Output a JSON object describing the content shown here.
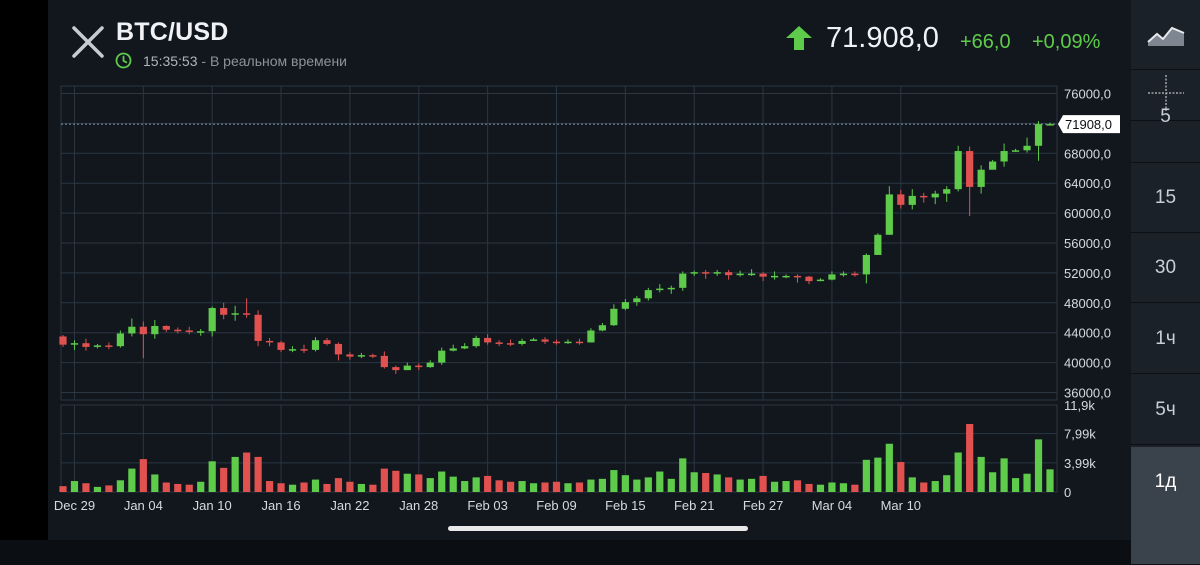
{
  "header": {
    "symbol": "BTC/USD",
    "time": "15:35:53",
    "status_text": " - В реальном времени",
    "price": "71.908,0",
    "change": "+66,0",
    "change_pct": "+0,09%"
  },
  "colors": {
    "up": "#5ecb4a",
    "down": "#e0514f",
    "background": "#12171e",
    "grid": "#2a3642"
  },
  "icons": {
    "close": "close-icon",
    "clock": "clock-icon",
    "trend": "arrow-up-icon",
    "chart_type": "line-chart-icon",
    "crosshair": "crosshair-icon"
  },
  "timeframes": [
    {
      "label": "5",
      "active": false
    },
    {
      "label": "15",
      "active": false
    },
    {
      "label": "30",
      "active": false
    },
    {
      "label": "1ч",
      "active": false
    },
    {
      "label": "5ч",
      "active": false
    },
    {
      "label": "1д",
      "active": true
    }
  ],
  "chart_data": {
    "type": "candlestick",
    "x_ticks": [
      "Dec 29",
      "Jan 04",
      "Jan 10",
      "Jan 16",
      "Jan 22",
      "Jan 28",
      "Feb 03",
      "Feb 09",
      "Feb 15",
      "Feb 21",
      "Feb 27",
      "Mar 04",
      "Mar 10"
    ],
    "price_ticks": [
      "76000,0",
      "72000,0",
      "68000,0",
      "64000,0",
      "60000,0",
      "56000,0",
      "52000,0",
      "48000,0",
      "44000,0",
      "40000,0",
      "36000,0"
    ],
    "price_tick_values": [
      76000,
      72000,
      68000,
      64000,
      60000,
      56000,
      52000,
      48000,
      44000,
      40000,
      36000
    ],
    "price_range": [
      35000,
      77000
    ],
    "last_price_label": "71908,0",
    "last_price": 71908,
    "volume_ticks": [
      "11,9k",
      "7,99k",
      "3,99k",
      "0"
    ],
    "volume_tick_values": [
      11900,
      7990,
      3990,
      0
    ],
    "volume_range": [
      0,
      11900
    ],
    "candles": [
      [
        43500,
        42400,
        43700,
        42100,
        800
      ],
      [
        42400,
        42600,
        43000,
        41700,
        1500
      ],
      [
        42600,
        42100,
        43200,
        41600,
        1200
      ],
      [
        42100,
        42300,
        42500,
        41900,
        700
      ],
      [
        42300,
        42200,
        42700,
        41800,
        900
      ],
      [
        42200,
        43900,
        44300,
        42000,
        1600
      ],
      [
        43900,
        44800,
        45900,
        43500,
        3200
      ],
      [
        44800,
        43800,
        45500,
        40600,
        4500
      ],
      [
        43800,
        44900,
        45700,
        43200,
        2400
      ],
      [
        44900,
        44400,
        45000,
        44100,
        1300
      ],
      [
        44400,
        44300,
        44700,
        43900,
        1100
      ],
      [
        44300,
        44100,
        44800,
        43800,
        1000
      ],
      [
        44100,
        44200,
        44500,
        43600,
        1400
      ],
      [
        44200,
        47300,
        47500,
        43500,
        4200
      ],
      [
        47300,
        46400,
        48000,
        45800,
        3300
      ],
      [
        46400,
        46600,
        47600,
        45600,
        4800
      ],
      [
        46600,
        46400,
        48600,
        46000,
        5400
      ],
      [
        46400,
        42900,
        47000,
        42200,
        4800
      ],
      [
        42900,
        42700,
        43300,
        42200,
        1500
      ],
      [
        42700,
        41700,
        42900,
        41400,
        1200
      ],
      [
        41700,
        41800,
        42200,
        41400,
        1000
      ],
      [
        41800,
        41700,
        42400,
        41300,
        1300
      ],
      [
        41700,
        43000,
        43400,
        41500,
        1700
      ],
      [
        43000,
        42500,
        43300,
        42300,
        1100
      ],
      [
        42500,
        41100,
        42700,
        40300,
        1900
      ],
      [
        41100,
        40800,
        41400,
        40400,
        1400
      ],
      [
        40800,
        41000,
        41300,
        40600,
        1100
      ],
      [
        41000,
        40900,
        41200,
        40600,
        1000
      ],
      [
        40900,
        39400,
        41500,
        39200,
        3200
      ],
      [
        39400,
        39000,
        39600,
        38500,
        2900
      ],
      [
        39000,
        39600,
        40000,
        39000,
        2500
      ],
      [
        39600,
        39400,
        39900,
        39000,
        2400
      ],
      [
        39400,
        40000,
        40300,
        39300,
        1900
      ],
      [
        40000,
        41600,
        42000,
        39700,
        2800
      ],
      [
        41600,
        41900,
        42400,
        41500,
        2100
      ],
      [
        41900,
        42200,
        42600,
        41800,
        1500
      ],
      [
        42200,
        43300,
        43600,
        42000,
        2000
      ],
      [
        43300,
        42700,
        43800,
        42400,
        2200
      ],
      [
        42700,
        42600,
        43000,
        42200,
        1600
      ],
      [
        42600,
        42500,
        43100,
        42200,
        1400
      ],
      [
        42500,
        42900,
        43200,
        42300,
        1500
      ],
      [
        42900,
        43100,
        43300,
        42900,
        1200
      ],
      [
        43100,
        42800,
        43400,
        42500,
        1300
      ],
      [
        42800,
        42600,
        43100,
        42400,
        1400
      ],
      [
        42600,
        42800,
        43100,
        42500,
        1200
      ],
      [
        42800,
        42700,
        43200,
        42400,
        1300
      ],
      [
        42700,
        44300,
        44600,
        42700,
        1700
      ],
      [
        44300,
        45000,
        45300,
        44200,
        1800
      ],
      [
        45000,
        47200,
        47800,
        44900,
        3000
      ],
      [
        47200,
        48100,
        48500,
        47000,
        2300
      ],
      [
        48100,
        48600,
        48900,
        47600,
        1700
      ],
      [
        48600,
        49700,
        50000,
        48300,
        2000
      ],
      [
        49700,
        49900,
        50500,
        49400,
        2800
      ],
      [
        49900,
        50000,
        50300,
        49200,
        1800
      ],
      [
        50000,
        51900,
        52200,
        49600,
        4600
      ],
      [
        51900,
        52100,
        52300,
        51600,
        2700
      ],
      [
        52100,
        51900,
        52400,
        51200,
        2600
      ],
      [
        51900,
        52100,
        52400,
        51600,
        2400
      ],
      [
        52100,
        51700,
        52400,
        51100,
        2000
      ],
      [
        51700,
        51900,
        52300,
        51500,
        1700
      ],
      [
        51900,
        51900,
        52500,
        51600,
        1800
      ],
      [
        51900,
        51500,
        52100,
        50900,
        2200
      ],
      [
        51500,
        51600,
        52200,
        51100,
        1400
      ],
      [
        51600,
        51600,
        51800,
        51300,
        1500
      ],
      [
        51600,
        51500,
        51800,
        50700,
        1600
      ],
      [
        51500,
        50900,
        51600,
        50500,
        1100
      ],
      [
        50900,
        51100,
        51300,
        50900,
        1000
      ],
      [
        51100,
        51800,
        52200,
        51000,
        1300
      ],
      [
        51800,
        51900,
        52200,
        51500,
        1200
      ],
      [
        51900,
        51800,
        52200,
        51500,
        1000
      ],
      [
        51800,
        54400,
        54600,
        50600,
        4400
      ],
      [
        54400,
        57100,
        57300,
        54400,
        4700
      ],
      [
        57100,
        62500,
        63600,
        57100,
        6600
      ],
      [
        62500,
        61100,
        63100,
        60600,
        4100
      ],
      [
        61100,
        62300,
        63200,
        60500,
        2000
      ],
      [
        62300,
        62100,
        62700,
        61400,
        1300
      ],
      [
        62100,
        62600,
        63000,
        61200,
        1500
      ],
      [
        62600,
        63200,
        63600,
        61500,
        2300
      ],
      [
        63200,
        68300,
        69000,
        62900,
        5400
      ],
      [
        68300,
        63500,
        68900,
        59600,
        9300
      ],
      [
        63500,
        65800,
        66400,
        62600,
        4800
      ],
      [
        65800,
        66900,
        67100,
        66000,
        2700
      ],
      [
        66900,
        68300,
        69300,
        66200,
        4600
      ],
      [
        68300,
        68400,
        68600,
        68200,
        1900
      ],
      [
        68400,
        69000,
        70100,
        68100,
        2500
      ],
      [
        69000,
        71900,
        72300,
        67000,
        7200
      ],
      [
        71900,
        71908,
        72100,
        71800,
        3100
      ]
    ]
  }
}
